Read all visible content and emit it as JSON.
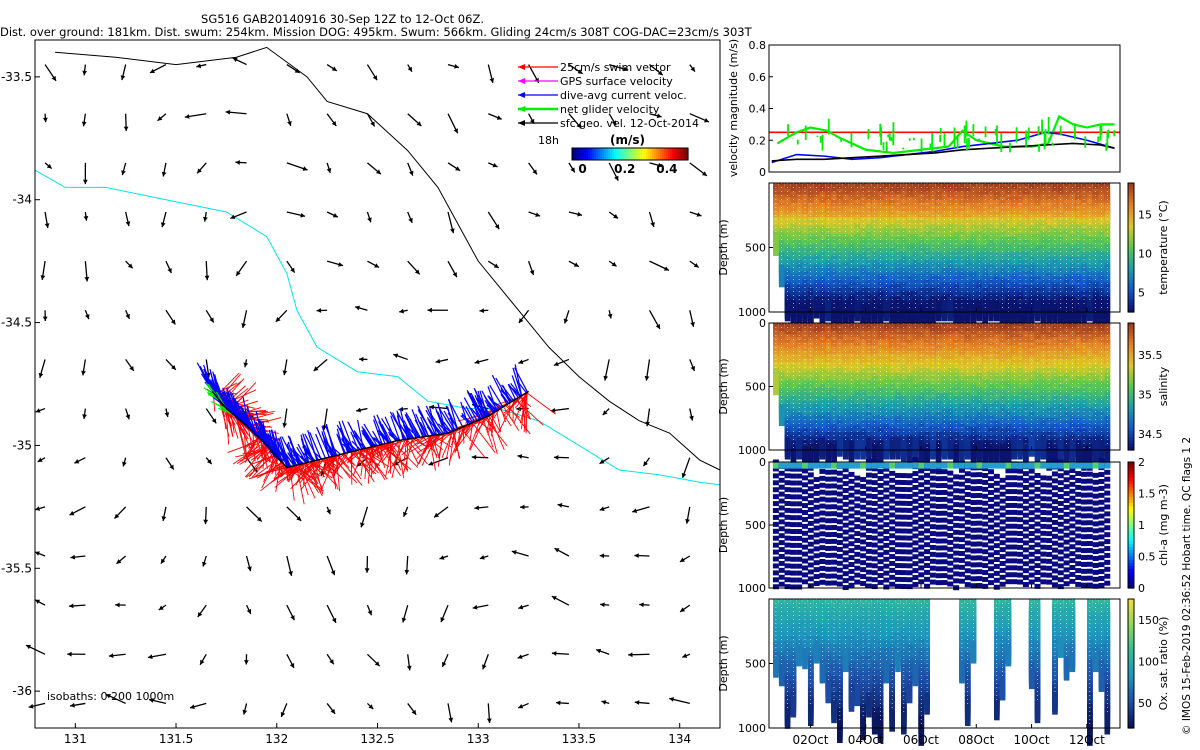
{
  "header": {
    "title_line1": "SG516 GAB20140916 30-Sep 12Z to 12-Oct 06Z.",
    "title_line2": "Dist. over ground: 181km. Dist. swum: 254km. Mission DOG: 495km. Swum: 566km. Gliding 24cm/s 308T COG-DAC=23cm/s 303T"
  },
  "credit": "© IMOS 15-Feb-2019 02:36:52 Hobart time. QC flags 1  2",
  "colors": {
    "swim": "#ff0000",
    "gps": "#ff00ff",
    "dac": "#0000ff",
    "net": "#00ee00",
    "coast": "#000000",
    "isobath200": "#00e5ee"
  },
  "chart_data": [
    {
      "type": "scatter",
      "panel": "map",
      "x_ticks": [
        "131",
        "131.5",
        "132",
        "132.5",
        "133",
        "133.5",
        "134"
      ],
      "y_ticks": [
        "-33.5",
        "-34",
        "-34.5",
        "-35",
        "-35.5",
        "-36"
      ],
      "xlim": [
        130.8,
        134.2
      ],
      "ylim": [
        -36.15,
        -33.35
      ],
      "legend": [
        {
          "label": "25cm/s swim vector",
          "color": "#ff0000"
        },
        {
          "label": "GPS surface velocity",
          "color": "#ff00ff"
        },
        {
          "label": "dive-avg current veloc.",
          "color": "#0000ff"
        },
        {
          "label": "net glider velocity",
          "color": "#00ee00"
        },
        {
          "label": "sfc geo. vel. 12-Oct-2014",
          "color": "#000000"
        }
      ],
      "legend_extra": "18h",
      "colorbar": {
        "label": "(m/s)",
        "ticks": [
          "0",
          "0.2",
          "0.4"
        ],
        "range": [
          -0.05,
          0.5
        ]
      },
      "isobaths_label": "isobaths: 0   200  1000m",
      "track": [
        [
          133.25,
          -34.78
        ],
        [
          133.05,
          -34.88
        ],
        [
          132.85,
          -34.95
        ],
        [
          132.6,
          -34.98
        ],
        [
          132.4,
          -35.02
        ],
        [
          132.2,
          -35.06
        ],
        [
          132.05,
          -35.09
        ],
        [
          131.95,
          -35.0
        ],
        [
          131.85,
          -34.92
        ],
        [
          131.75,
          -34.85
        ],
        [
          131.68,
          -34.78
        ]
      ]
    },
    {
      "type": "line",
      "panel": "velocity",
      "ylabel": "velocity magnitude (m/s)",
      "y_ticks": [
        "0",
        "0.2",
        "0.4",
        "0.6",
        "0.8"
      ],
      "ylim": [
        0,
        0.8
      ],
      "xlim_days": [
        30.5,
        43.2
      ],
      "series": [
        {
          "color": "#ff0000",
          "x": [
            30.5,
            43.2
          ],
          "values": [
            0.25,
            0.25
          ]
        },
        {
          "color": "#00ee00",
          "x": [
            30.8,
            31.5,
            32.0,
            32.6,
            33.0,
            34,
            35,
            36,
            37,
            37.5,
            38,
            39,
            40,
            40.6,
            41,
            41.5,
            42,
            42.5,
            43
          ],
          "values": [
            0.18,
            0.25,
            0.28,
            0.26,
            0.22,
            0.14,
            0.12,
            0.14,
            0.16,
            0.26,
            0.2,
            0.16,
            0.16,
            0.18,
            0.35,
            0.3,
            0.28,
            0.3,
            0.3
          ]
        },
        {
          "color": "#0000ff",
          "x": [
            30.6,
            31.5,
            32.5,
            33.5,
            34.5,
            35.5,
            36.5,
            37.5,
            38.5,
            39.5,
            40.5,
            41,
            42,
            43
          ],
          "values": [
            0.06,
            0.11,
            0.1,
            0.08,
            0.09,
            0.11,
            0.13,
            0.16,
            0.18,
            0.2,
            0.25,
            0.24,
            0.2,
            0.15
          ]
        },
        {
          "color": "#000000",
          "x": [
            30.6,
            31.5,
            32.5,
            33.5,
            34.5,
            35.5,
            36.5,
            37.5,
            38.5,
            39.5,
            40.5,
            41.5,
            42.5,
            43
          ],
          "values": [
            0.07,
            0.08,
            0.08,
            0.09,
            0.1,
            0.11,
            0.12,
            0.14,
            0.15,
            0.16,
            0.17,
            0.18,
            0.17,
            0.15
          ]
        }
      ]
    },
    {
      "type": "heatmap",
      "panel": "temperature",
      "ylabel": "Depth (m)",
      "y_ticks": [
        "500",
        "1000"
      ],
      "ylim": [
        1000,
        0
      ],
      "colorbar_label": "temperature (°C)",
      "colorbar_ticks": [
        "5",
        "10",
        "15"
      ],
      "colorbar_range": [
        2.5,
        19
      ]
    },
    {
      "type": "heatmap",
      "panel": "salinity",
      "ylabel": "Depth (m)",
      "y_ticks": [
        "0",
        "500",
        "1000"
      ],
      "ylim": [
        1000,
        0
      ],
      "colorbar_label": "salinity",
      "colorbar_ticks": [
        "34.5",
        "35",
        "35.5"
      ],
      "colorbar_range": [
        34.3,
        35.9
      ]
    },
    {
      "type": "scatter",
      "panel": "chlorophyll",
      "ylabel": "Depth (m)",
      "y_ticks": [
        "0",
        "500",
        "1000"
      ],
      "ylim": [
        1000,
        0
      ],
      "colorbar_label": "chl-a (mg m-3)",
      "colorbar_ticks": [
        "0",
        "0.5",
        "1",
        "1.5",
        "2"
      ],
      "colorbar_range": [
        0,
        2
      ]
    },
    {
      "type": "heatmap",
      "panel": "oxygen",
      "ylabel": "Depth (m)",
      "y_ticks": [
        "500",
        "1000"
      ],
      "ylim": [
        1000,
        0
      ],
      "colorbar_label": "Ox. sat. ratio (%)",
      "colorbar_ticks": [
        "50",
        "100",
        "150"
      ],
      "colorbar_range": [
        20,
        175
      ],
      "x_ticks": [
        "02Oct",
        "04Oct",
        "06Oct",
        "08Oct",
        "10Oct",
        "12Oct"
      ]
    }
  ]
}
